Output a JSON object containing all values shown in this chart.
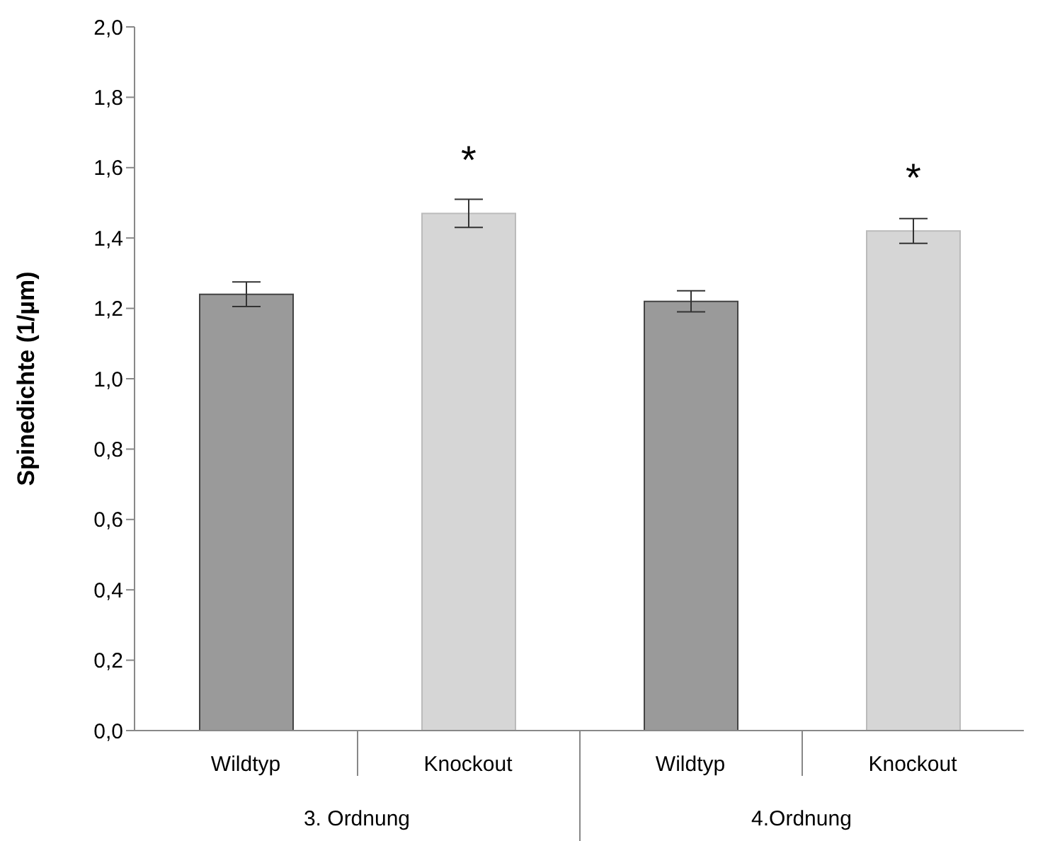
{
  "chart_data": {
    "type": "bar",
    "ylabel": "Spinedichte (1/µm)",
    "categories": [
      "Wildtyp",
      "Knockout",
      "Wildtyp",
      "Knockout"
    ],
    "values": [
      1.24,
      1.47,
      1.22,
      1.42
    ],
    "colors": [
      "#9a9a9a",
      "#d6d6d6",
      "#9a9a9a",
      "#d6d6d6"
    ],
    "errors": [
      0.035,
      0.04,
      0.03,
      0.035
    ],
    "value_labels": [
      null,
      "*",
      null,
      "*"
    ],
    "annotations": [
      "3. Ordnung",
      "4.Ordnung"
    ],
    "ylim": [
      0,
      2
    ],
    "yticks": [
      {
        "value": 0,
        "label": "0,0"
      },
      {
        "value": 0.2,
        "label": "0,2"
      },
      {
        "value": 0.4,
        "label": "0,4"
      },
      {
        "value": 0.6,
        "label": "0,6"
      },
      {
        "value": 0.8,
        "label": "0,8"
      },
      {
        "value": 1,
        "label": "1,0"
      },
      {
        "value": 1.2,
        "label": "1,2"
      },
      {
        "value": 1.4,
        "label": "1,4"
      },
      {
        "value": 1.6,
        "label": "1,6"
      },
      {
        "value": 1.8,
        "label": "1,8"
      },
      {
        "value": 2,
        "label": "2,0"
      }
    ],
    "grid": false
  }
}
